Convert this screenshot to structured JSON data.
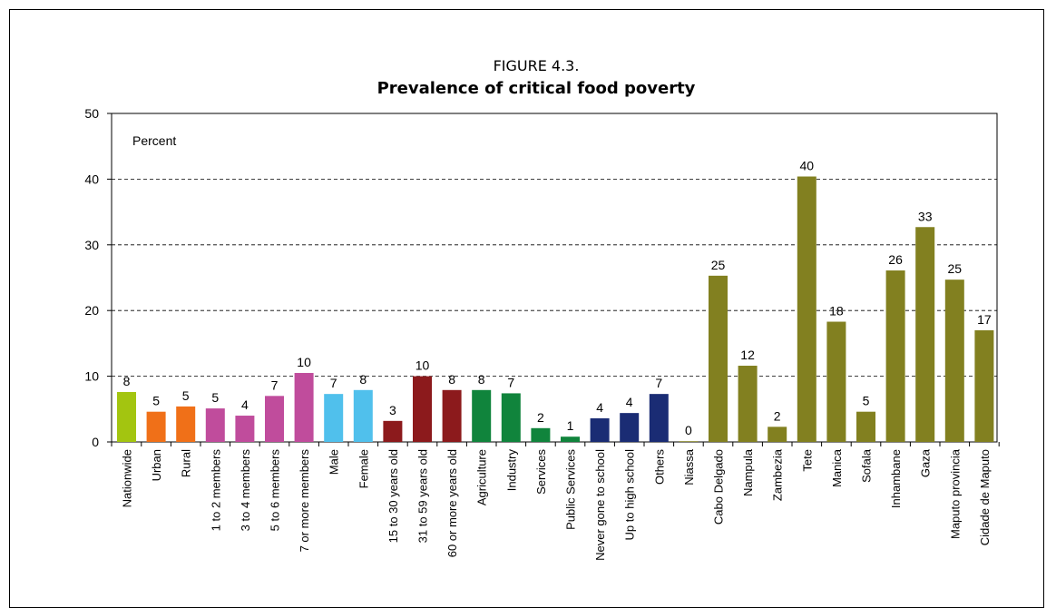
{
  "chart_data": {
    "type": "bar",
    "title_line1": "FIGURE 4.3.",
    "title_line2": "Prevalence of critical food poverty",
    "ylabel": "Percent",
    "ylim": [
      0,
      50
    ],
    "yticks": [
      0,
      10,
      20,
      30,
      40,
      50
    ],
    "grid": true,
    "categories": [
      "Nationwide",
      "Urban",
      "Rural",
      "1 to 2 members",
      "3 to 4 members",
      "5 to 6 members",
      "7 or more members",
      "Male",
      "Female",
      "15 to 30 years old",
      "31 to 59 years old",
      "60 or more years old",
      "Agriculture",
      "Industry",
      "Services",
      "Public Services",
      "Never gone to school",
      "Up to high school",
      "Others",
      "Niassa",
      "Cabo Delgado",
      "Nampula",
      "Zambezia",
      "Tete",
      "Manica",
      "Sofala",
      "Inhambane",
      "Gaza",
      "Maputo provincia",
      "Cidade de Maputo"
    ],
    "values": [
      7.6,
      4.6,
      5.4,
      5.1,
      4.0,
      7.0,
      10.5,
      7.3,
      7.9,
      3.2,
      10.0,
      7.9,
      7.9,
      7.4,
      2.1,
      0.8,
      3.6,
      4.4,
      7.3,
      0.1,
      25.3,
      11.6,
      2.3,
      40.4,
      18.3,
      4.6,
      26.1,
      32.7,
      24.7,
      17.0
    ],
    "labels": [
      "8",
      "5",
      "5",
      "5",
      "4",
      "7",
      "10",
      "7",
      "8",
      "3",
      "10",
      "8",
      "8",
      "7",
      "2",
      "1",
      "4",
      "4",
      "7",
      "0",
      "25",
      "12",
      "2",
      "40",
      "18",
      "5",
      "26",
      "33",
      "25",
      "17"
    ],
    "colors": [
      "#a3c510",
      "#f07018",
      "#f07018",
      "#c04c9c",
      "#c04c9c",
      "#c04c9c",
      "#c04c9c",
      "#50c0ec",
      "#50c0ec",
      "#8c1a1c",
      "#8c1a1c",
      "#8c1a1c",
      "#10843c",
      "#10843c",
      "#10843c",
      "#10843c",
      "#1a2c74",
      "#1a2c74",
      "#1a2c74",
      "#828020",
      "#828020",
      "#828020",
      "#828020",
      "#828020",
      "#828020",
      "#828020",
      "#828020",
      "#828020",
      "#828020",
      "#828020"
    ]
  }
}
